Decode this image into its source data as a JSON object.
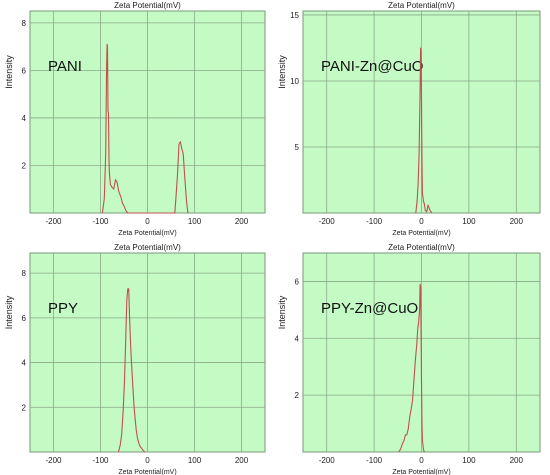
{
  "chart_data": [
    {
      "type": "line",
      "title": "Zeta Potential(mV)",
      "xlabel": "Zeta Potential(mV)",
      "ylabel": "Intensity",
      "annotation": "PANI",
      "xlim": [
        -250,
        250
      ],
      "ylim": [
        0,
        8.5
      ],
      "x_ticks": [
        "-200",
        "-100",
        "0",
        "100",
        "200"
      ],
      "y_ticks": [
        "2",
        "4",
        "6",
        "8"
      ],
      "grid": true,
      "series": [
        {
          "color": "#c0504d",
          "x": [
            -96,
            -92,
            -89,
            -87,
            -86,
            -85,
            -84,
            -83,
            -82,
            -81,
            -79,
            -76,
            -72,
            -68,
            -65,
            -61,
            -57,
            -53,
            -50,
            -46,
            -42,
            58,
            61,
            64,
            67,
            70,
            73,
            76,
            79,
            83,
            86
          ],
          "y": [
            0,
            0.6,
            2.5,
            6.1,
            7.1,
            7.0,
            4.3,
            4.2,
            2.2,
            1.7,
            1.2,
            1.1,
            1.0,
            1.4,
            1.3,
            0.9,
            0.7,
            0.4,
            0.3,
            0.1,
            0,
            0,
            0.8,
            1.7,
            2.9,
            3.0,
            2.7,
            2.5,
            1.6,
            0.5,
            0
          ]
        }
      ]
    },
    {
      "type": "line",
      "title": "Zeta Potential(mV)",
      "xlabel": "Zeta Potential(mV)",
      "ylabel": "Intensity",
      "annotation": "PANI-Zn@CuO",
      "xlim": [
        -250,
        250
      ],
      "ylim": [
        0,
        15.3
      ],
      "x_ticks": [
        "-200",
        "-100",
        "0",
        "100",
        "200"
      ],
      "y_ticks": [
        "5",
        "10",
        "15"
      ],
      "grid": true,
      "series": [
        {
          "color": "#c0504d",
          "x": [
            -12,
            -9,
            -7,
            -5,
            -3,
            -2,
            -1,
            0,
            1,
            2,
            4,
            6,
            8,
            11,
            14,
            18,
            22
          ],
          "y": [
            0,
            1.0,
            2.3,
            4.6,
            9.2,
            12.5,
            12.2,
            8.5,
            4.0,
            1.5,
            0.9,
            0.7,
            0.2,
            0.1,
            0.6,
            0.2,
            0
          ]
        }
      ]
    },
    {
      "type": "line",
      "title": "Zeta Potential(mV)",
      "xlabel": "Zeta Potential(mV)",
      "ylabel": "Intensity",
      "annotation": "PPY",
      "xlim": [
        -250,
        250
      ],
      "ylim": [
        0,
        8.9
      ],
      "x_ticks": [
        "-200",
        "-100",
        "0",
        "100",
        "200"
      ],
      "y_ticks": [
        "2",
        "4",
        "6",
        "8"
      ],
      "grid": true,
      "series": [
        {
          "color": "#c0504d",
          "x": [
            -62,
            -58,
            -55,
            -52,
            -49,
            -46,
            -44,
            -42,
            -40,
            -38,
            -36,
            -34,
            -32,
            -30,
            -28,
            -26,
            -24,
            -22,
            -20,
            -17,
            -14,
            -10,
            -6
          ],
          "y": [
            0,
            0.3,
            0.8,
            1.8,
            3.2,
            5.3,
            6.8,
            7.3,
            7.3,
            6.0,
            4.8,
            4.0,
            3.2,
            2.5,
            1.9,
            1.4,
            1.0,
            0.7,
            0.5,
            0.3,
            0.2,
            0.1,
            0
          ]
        }
      ]
    },
    {
      "type": "line",
      "title": "Zeta Potential(mV)",
      "xlabel": "Zeta Potential(mV)",
      "ylabel": "Intensity",
      "annotation": "PPY-Zn@CuO",
      "xlim": [
        -250,
        250
      ],
      "ylim": [
        0,
        7.0
      ],
      "x_ticks": [
        "-200",
        "-100",
        "0",
        "100",
        "200"
      ],
      "y_ticks": [
        "2",
        "4",
        "6"
      ],
      "grid": true,
      "series": [
        {
          "color": "#c0504d",
          "x": [
            -48,
            -44,
            -40,
            -37,
            -34,
            -31,
            -28,
            -25,
            -22,
            -19,
            -16,
            -13,
            -10,
            -8,
            -6,
            -4,
            -3,
            -2,
            -1,
            0,
            1,
            2,
            4,
            6
          ],
          "y": [
            0,
            0.1,
            0.3,
            0.4,
            0.6,
            0.6,
            0.8,
            1.2,
            1.5,
            1.8,
            2.5,
            3.2,
            3.8,
            4.3,
            4.6,
            5.0,
            5.9,
            5.8,
            4.5,
            2.5,
            1.0,
            0.4,
            0.1,
            0
          ]
        }
      ]
    }
  ]
}
